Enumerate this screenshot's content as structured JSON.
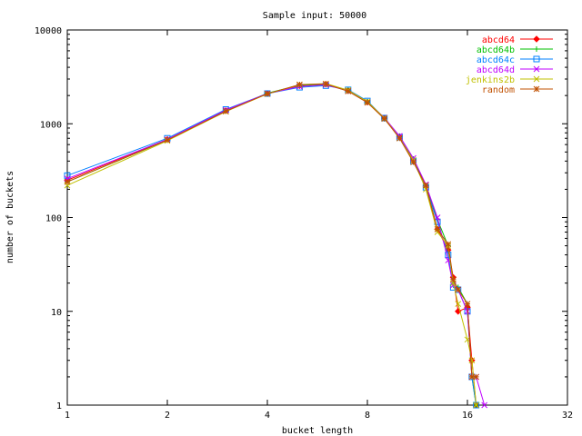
{
  "chart_data": {
    "type": "line",
    "title": "Sample input: 50000",
    "xlabel": "bucket length",
    "ylabel": "number of buckets",
    "x_scale": "log2",
    "y_scale": "log10",
    "xlim": [
      1,
      32
    ],
    "ylim": [
      1,
      10000
    ],
    "x_ticks": [
      1,
      2,
      4,
      8,
      16,
      32
    ],
    "x_tick_labels": [
      "1",
      "2",
      "4",
      "8",
      "16",
      "32"
    ],
    "y_ticks": [
      1,
      10,
      100,
      1000,
      10000
    ],
    "y_tick_labels": [
      "1",
      "10",
      "100",
      "1000",
      "10000"
    ],
    "grid": false,
    "legend_position": "top-right",
    "series": [
      {
        "name": "abcd64",
        "color": "#ff0000",
        "marker": "diamond",
        "points": [
          [
            1,
            250
          ],
          [
            2,
            680
          ],
          [
            3,
            1380
          ],
          [
            4,
            2100
          ],
          [
            5,
            2550
          ],
          [
            6,
            2650
          ],
          [
            7,
            2250
          ],
          [
            8,
            1700
          ],
          [
            9,
            1150
          ],
          [
            10,
            730
          ],
          [
            11,
            410
          ],
          [
            12,
            215
          ],
          [
            13,
            75
          ],
          [
            14,
            45
          ],
          [
            14.5,
            23
          ],
          [
            15,
            10
          ],
          [
            16,
            11
          ],
          [
            16.5,
            3
          ],
          [
            17,
            1
          ]
        ]
      },
      {
        "name": "abcd64b",
        "color": "#00c000",
        "marker": "plus",
        "points": [
          [
            1,
            240
          ],
          [
            2,
            670
          ],
          [
            3,
            1370
          ],
          [
            4,
            2120
          ],
          [
            5,
            2580
          ],
          [
            6,
            2620
          ],
          [
            7,
            2280
          ],
          [
            8,
            1720
          ],
          [
            9,
            1130
          ],
          [
            10,
            720
          ],
          [
            11,
            420
          ],
          [
            12,
            220
          ],
          [
            13,
            95
          ],
          [
            14,
            50
          ],
          [
            14.5,
            20
          ],
          [
            15,
            18
          ],
          [
            16,
            12
          ],
          [
            16.5,
            2
          ],
          [
            17,
            1
          ]
        ]
      },
      {
        "name": "abcd64c",
        "color": "#0080ff",
        "marker": "square",
        "points": [
          [
            1,
            280
          ],
          [
            2,
            700
          ],
          [
            3,
            1420
          ],
          [
            4,
            2100
          ],
          [
            5,
            2450
          ],
          [
            6,
            2550
          ],
          [
            7,
            2300
          ],
          [
            8,
            1750
          ],
          [
            9,
            1150
          ],
          [
            10,
            720
          ],
          [
            11,
            400
          ],
          [
            12,
            210
          ],
          [
            13,
            90
          ],
          [
            14,
            40
          ],
          [
            14.5,
            18
          ],
          [
            15,
            17
          ],
          [
            16,
            10
          ],
          [
            16.5,
            2
          ],
          [
            17,
            1
          ]
        ]
      },
      {
        "name": "abcd64d",
        "color": "#c000ff",
        "marker": "x",
        "points": [
          [
            1,
            260
          ],
          [
            2,
            680
          ],
          [
            3,
            1400
          ],
          [
            4,
            2100
          ],
          [
            5,
            2500
          ],
          [
            6,
            2600
          ],
          [
            7,
            2250
          ],
          [
            8,
            1700
          ],
          [
            9,
            1160
          ],
          [
            10,
            740
          ],
          [
            11,
            430
          ],
          [
            12,
            225
          ],
          [
            13,
            100
          ],
          [
            14,
            35
          ],
          [
            14.5,
            19
          ],
          [
            15,
            17
          ],
          [
            16,
            10
          ],
          [
            16.5,
            2
          ],
          [
            17,
            2
          ],
          [
            18,
            1
          ]
        ]
      },
      {
        "name": "jenkins2b",
        "color": "#c0c000",
        "marker": "x",
        "points": [
          [
            1,
            220
          ],
          [
            2,
            660
          ],
          [
            3,
            1350
          ],
          [
            4,
            2080
          ],
          [
            5,
            2600
          ],
          [
            6,
            2680
          ],
          [
            7,
            2280
          ],
          [
            8,
            1720
          ],
          [
            9,
            1150
          ],
          [
            10,
            700
          ],
          [
            11,
            410
          ],
          [
            12,
            200
          ],
          [
            13,
            70
          ],
          [
            14,
            50
          ],
          [
            14.5,
            20
          ],
          [
            15,
            12
          ],
          [
            16,
            5
          ],
          [
            16.5,
            3
          ],
          [
            17,
            1
          ]
        ]
      },
      {
        "name": "random",
        "color": "#c05000",
        "marker": "star",
        "points": [
          [
            1,
            240
          ],
          [
            2,
            670
          ],
          [
            3,
            1360
          ],
          [
            4,
            2090
          ],
          [
            5,
            2620
          ],
          [
            6,
            2650
          ],
          [
            7,
            2220
          ],
          [
            8,
            1680
          ],
          [
            9,
            1130
          ],
          [
            10,
            700
          ],
          [
            11,
            390
          ],
          [
            12,
            220
          ],
          [
            13,
            75
          ],
          [
            14,
            52
          ],
          [
            14.5,
            22
          ],
          [
            15,
            17
          ],
          [
            16,
            12
          ],
          [
            16.5,
            2
          ],
          [
            17,
            2
          ]
        ]
      }
    ]
  }
}
